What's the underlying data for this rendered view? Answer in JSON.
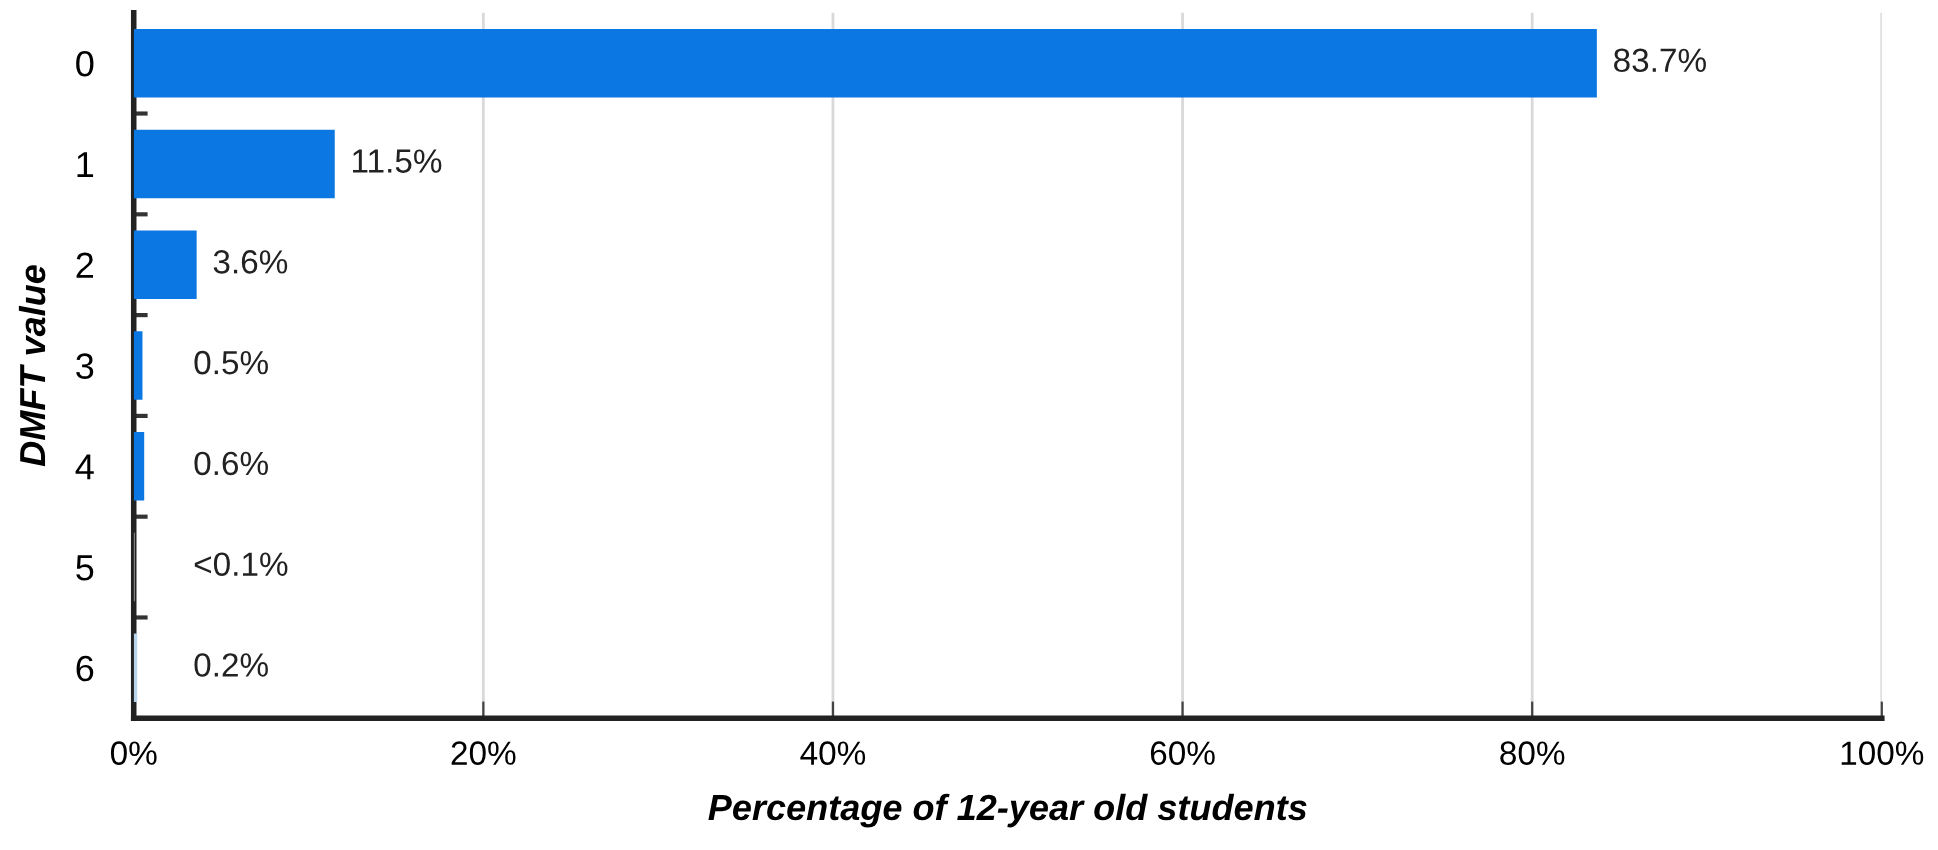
{
  "chart_data": {
    "type": "bar",
    "orientation": "horizontal",
    "xlabel": "Percentage of 12-year old students",
    "ylabel": "DMFT value",
    "categories": [
      "0",
      "1",
      "2",
      "3",
      "4",
      "5",
      "6"
    ],
    "values": [
      83.7,
      11.5,
      3.6,
      0.5,
      0.6,
      0.05,
      0.2
    ],
    "colors": [
      "#0b77e3",
      "#0b77e3",
      "#0b77e3",
      "#0b77e3",
      "#0b77e3",
      "#c8c8c8",
      "#b8d4ea"
    ],
    "value_labels": [
      "83.7%",
      "11.5%",
      "3.6%",
      "0.5%",
      "0.6%",
      "<0.1%",
      "0.2%"
    ],
    "xlim": [
      0,
      100
    ],
    "xticks": [
      {
        "value": 0,
        "label": "0%"
      },
      {
        "value": 20,
        "label": "20%"
      },
      {
        "value": 40,
        "label": "40%"
      },
      {
        "value": 60,
        "label": "60%"
      },
      {
        "value": 80,
        "label": "80%"
      },
      {
        "value": 100,
        "label": "100%"
      }
    ],
    "grid": "x",
    "legend": false
  }
}
